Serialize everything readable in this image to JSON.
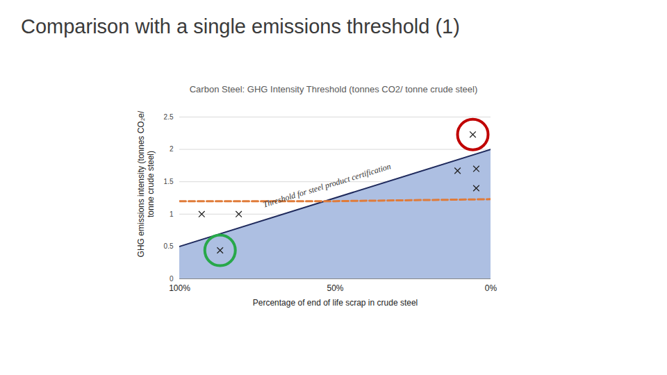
{
  "title": "Comparison with a single emissions threshold (1)",
  "chart_data": {
    "type": "area",
    "title": "Carbon Steel: GHG Intensity Threshold (tonnes CO2/ tonne crude steel)",
    "x_label": "Percentage of end of life scrap in crude steel",
    "y_label": "GHG emissions intensity (tonnes CO₂e/ tonne crude steel)",
    "xlim": [
      100,
      0
    ],
    "xticks": [
      {
        "value": 100,
        "label": "100%"
      },
      {
        "value": 50,
        "label": "50%"
      },
      {
        "value": 0,
        "label": "0%"
      }
    ],
    "ylim": [
      0,
      2.5
    ],
    "yticks": [
      0,
      0.5,
      1,
      1.5,
      2,
      2.5
    ],
    "grid": true,
    "annotations": [
      {
        "text": "Threshold for steel product certification"
      }
    ],
    "series": [
      {
        "type": "area",
        "color": "#adbfe2",
        "x": [
          100,
          0
        ],
        "values": [
          0.5,
          2.0
        ]
      },
      {
        "type": "line",
        "color": "#1f2a5c",
        "line_style": "solid",
        "x": [
          100,
          0
        ],
        "values": [
          0.5,
          2.0
        ]
      },
      {
        "type": "line",
        "color": "#e07b39",
        "line_style": "dashed",
        "x": [
          100,
          50,
          0
        ],
        "values": [
          1.2,
          1.2,
          1.23
        ]
      },
      {
        "type": "scatter",
        "marker": "x",
        "color": "#222222",
        "x": [
          92.9,
          81,
          87,
          5.8,
          10.7,
          4.7,
          4.7
        ],
        "values": [
          1.0,
          1.0,
          0.44,
          2.23,
          1.67,
          1.7,
          1.4
        ]
      },
      {
        "type": "scatter",
        "marker": "circle",
        "color": "#27a84a",
        "x": [
          87
        ],
        "values": [
          0.44
        ]
      },
      {
        "type": "scatter",
        "marker": "circle",
        "color": "#c00000",
        "x": [
          5.8
        ],
        "values": [
          2.23
        ]
      }
    ]
  }
}
